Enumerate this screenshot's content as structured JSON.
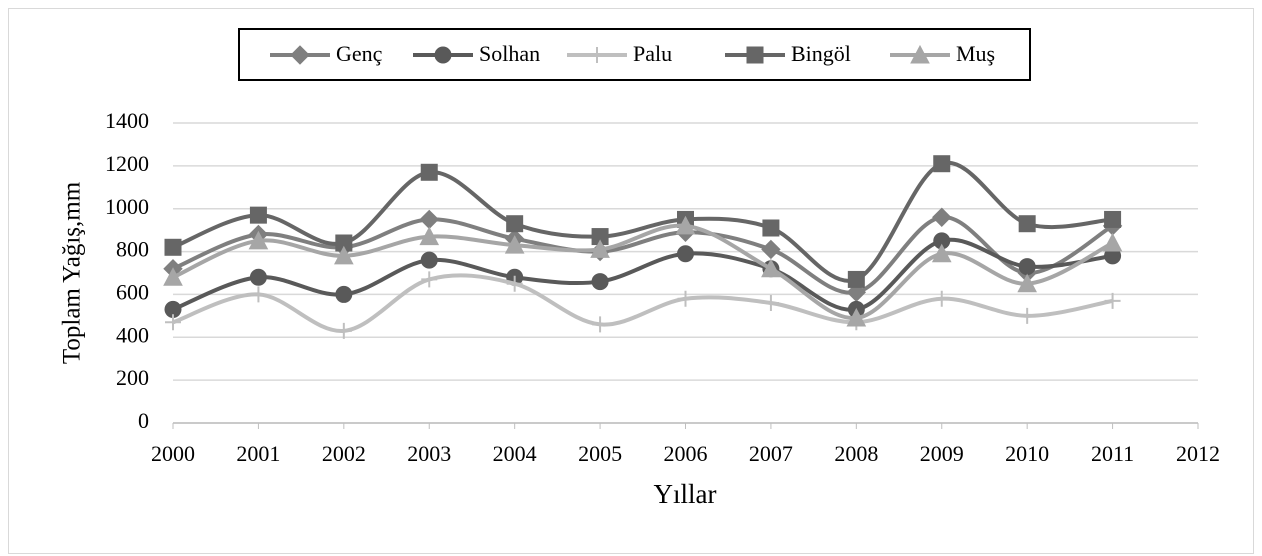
{
  "chart_data": {
    "type": "line",
    "x_label": "Yıllar",
    "y_label": "Toplam Yağış,mm",
    "x": [
      2000,
      2001,
      2002,
      2003,
      2004,
      2005,
      2006,
      2007,
      2008,
      2009,
      2010,
      2011
    ],
    "xlim": [
      2000,
      2012
    ],
    "xticks": [
      2000,
      2001,
      2002,
      2003,
      2004,
      2005,
      2006,
      2007,
      2008,
      2009,
      2010,
      2011,
      2012
    ],
    "ylim": [
      0,
      1400
    ],
    "yticks": [
      0,
      200,
      400,
      600,
      800,
      1000,
      1200,
      1400
    ],
    "grid": true,
    "smooth": true,
    "legend": "top",
    "series": [
      {
        "name": "Genç",
        "color": "#7f7f7f",
        "marker": "diamond",
        "values": [
          720,
          880,
          820,
          950,
          860,
          800,
          890,
          810,
          610,
          960,
          700,
          920
        ]
      },
      {
        "name": "Solhan",
        "color": "#595959",
        "marker": "circle",
        "values": [
          530,
          680,
          600,
          760,
          680,
          660,
          790,
          720,
          530,
          850,
          730,
          780
        ]
      },
      {
        "name": "Palu",
        "color": "#bfbfbf",
        "marker": "plus",
        "values": [
          470,
          600,
          430,
          670,
          650,
          460,
          580,
          560,
          470,
          580,
          500,
          570
        ]
      },
      {
        "name": "Bingöl",
        "color": "#666666",
        "marker": "square",
        "values": [
          820,
          970,
          840,
          1170,
          930,
          870,
          950,
          910,
          670,
          1210,
          930,
          950
        ]
      },
      {
        "name": "Muş",
        "color": "#a6a6a6",
        "marker": "triangle",
        "values": [
          680,
          850,
          780,
          870,
          830,
          810,
          920,
          720,
          490,
          790,
          650,
          840
        ]
      }
    ]
  }
}
